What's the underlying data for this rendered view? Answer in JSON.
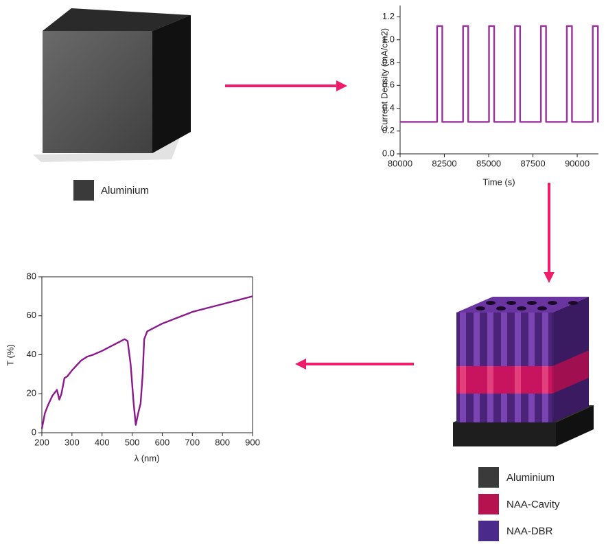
{
  "chart_data": [
    {
      "type": "line",
      "x_label": "Time (s)",
      "y_label": "Current Density (mA/cm2)",
      "x": [
        80000,
        82090,
        82090,
        82380,
        82380,
        83555,
        83555,
        83845,
        83845,
        85020,
        85020,
        85310,
        85310,
        86485,
        86485,
        86775,
        86775,
        87950,
        87950,
        88240,
        88240,
        89415,
        89415,
        89705,
        89705,
        90880,
        90880,
        91170,
        91170,
        91200
      ],
      "values": [
        0.28,
        0.28,
        1.12,
        1.12,
        0.28,
        0.28,
        1.12,
        1.12,
        0.28,
        0.28,
        1.12,
        1.12,
        0.28,
        0.28,
        1.12,
        1.12,
        0.28,
        0.28,
        1.12,
        1.12,
        0.28,
        0.28,
        1.12,
        1.12,
        0.28,
        0.28,
        1.12,
        1.12,
        0.28,
        0.28
      ],
      "color": "#9b2f9e",
      "xlim": [
        80000,
        91200
      ],
      "ylim": [
        0,
        1.3
      ],
      "xticks": [
        80000,
        82500,
        85000,
        87500,
        90000
      ],
      "yticks": [
        {
          "value": 0,
          "label": "0.0"
        },
        0.2,
        0.4,
        0.6,
        0.8,
        {
          "value": 1,
          "label": "1.0"
        },
        1.2
      ]
    },
    {
      "type": "line",
      "x_label": "λ (nm)",
      "y_label": "T (%)",
      "x": [
        200,
        210,
        220,
        235,
        250,
        258,
        265,
        275,
        285,
        300,
        330,
        350,
        370,
        400,
        450,
        475,
        485,
        495,
        505,
        512,
        520,
        528,
        535,
        540,
        550,
        600,
        650,
        700,
        750,
        800,
        850,
        900
      ],
      "values": [
        2,
        10,
        14,
        19,
        22,
        17,
        20,
        28,
        29,
        32,
        37,
        39,
        40,
        42,
        46,
        48,
        47,
        35,
        15,
        4,
        10,
        15,
        30,
        48,
        52,
        56,
        59,
        62,
        64,
        66,
        68,
        70
      ],
      "color": "#8a1a8c",
      "xlim": [
        200,
        900
      ],
      "ylim": [
        0,
        80
      ],
      "xticks": [
        200,
        300,
        400,
        500,
        600,
        700,
        800,
        900
      ],
      "yticks": [
        0,
        20,
        40,
        60,
        80
      ]
    }
  ],
  "legends": {
    "cube": [
      {
        "label": "Aluminium",
        "color": "#3a3a3a"
      }
    ],
    "structure": [
      {
        "label": "Aluminium",
        "color": "#3a3a3a"
      },
      {
        "label": "NAA-Cavity",
        "color": "#b5124f"
      },
      {
        "label": "NAA-DBR",
        "color": "#4a2a8a"
      }
    ]
  }
}
